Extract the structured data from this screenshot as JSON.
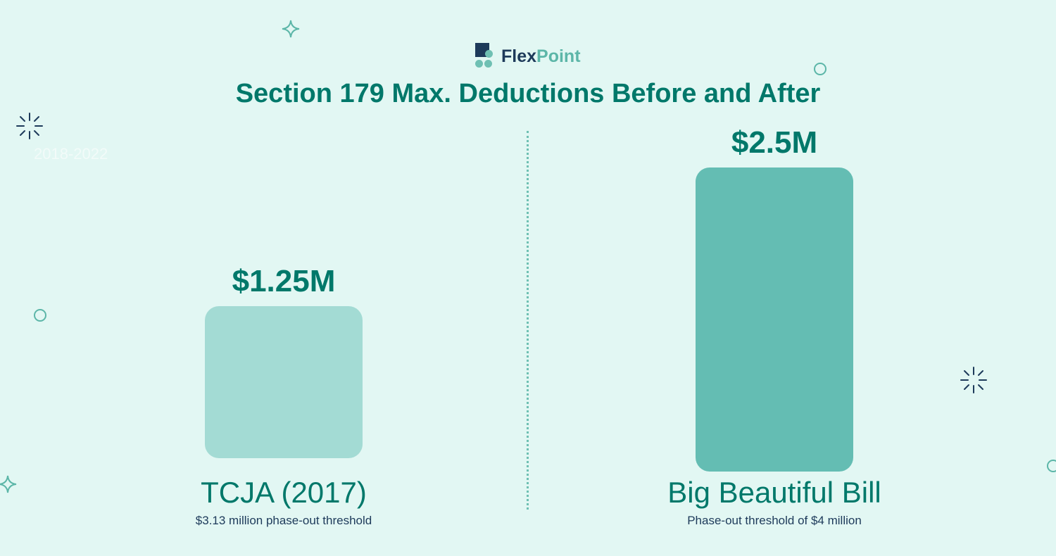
{
  "brand": {
    "name_part1": "Flex",
    "name_part2": "Point"
  },
  "faded_text": "2018-2022",
  "colors": {
    "background": "#e2f7f3",
    "title": "#00786a",
    "bar_light": "#a3dbd4",
    "bar_dark": "#64bdb3",
    "navy": "#1d3a5a"
  },
  "chart_data": {
    "type": "bar",
    "title": "Section 179 Max. Deductions Before and After",
    "categories": [
      "TCJA (2017)",
      "Big Beautiful Bill"
    ],
    "values": [
      1.25,
      2.5
    ],
    "value_labels": [
      "$1.25M",
      "$2.5M"
    ],
    "subtitles": [
      "$3.13 million phase-out threshold",
      "Phase-out threshold of $4 million"
    ],
    "unit": "million USD",
    "ylim": [
      0,
      2.5
    ],
    "grid": false,
    "legend": "none"
  }
}
